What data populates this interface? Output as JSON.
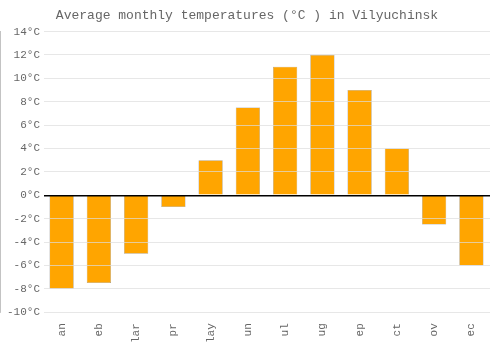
{
  "chart_data": {
    "type": "bar",
    "title": "Average monthly temperatures (°C ) in Vilyuchinsk",
    "categories": [
      "an",
      "eb",
      "lar",
      "pr",
      "lay",
      "un",
      "ul",
      "ug",
      "ep",
      "ct",
      "ov",
      "ec"
    ],
    "values": [
      -8,
      -7.5,
      -5,
      -1,
      3,
      7.5,
      11,
      12,
      9,
      4,
      -2.5,
      -6
    ],
    "color": "#FFA500",
    "ylim": [
      -10,
      14
    ],
    "yticks": [
      {
        "value": -10,
        "label": "-10°C"
      },
      {
        "value": -8,
        "label": "-8°C"
      },
      {
        "value": -6,
        "label": "-6°C"
      },
      {
        "value": -4,
        "label": "-4°C"
      },
      {
        "value": -2,
        "label": "-2°C"
      },
      {
        "value": 0,
        "label": "0°C"
      },
      {
        "value": 2,
        "label": "2°C"
      },
      {
        "value": 4,
        "label": "4°C"
      },
      {
        "value": 6,
        "label": "6°C"
      },
      {
        "value": 8,
        "label": "8°C"
      },
      {
        "value": 10,
        "label": "10°C"
      },
      {
        "value": 12,
        "label": "12°C"
      },
      {
        "value": 14,
        "label": "14°C"
      }
    ],
    "grid": true
  }
}
